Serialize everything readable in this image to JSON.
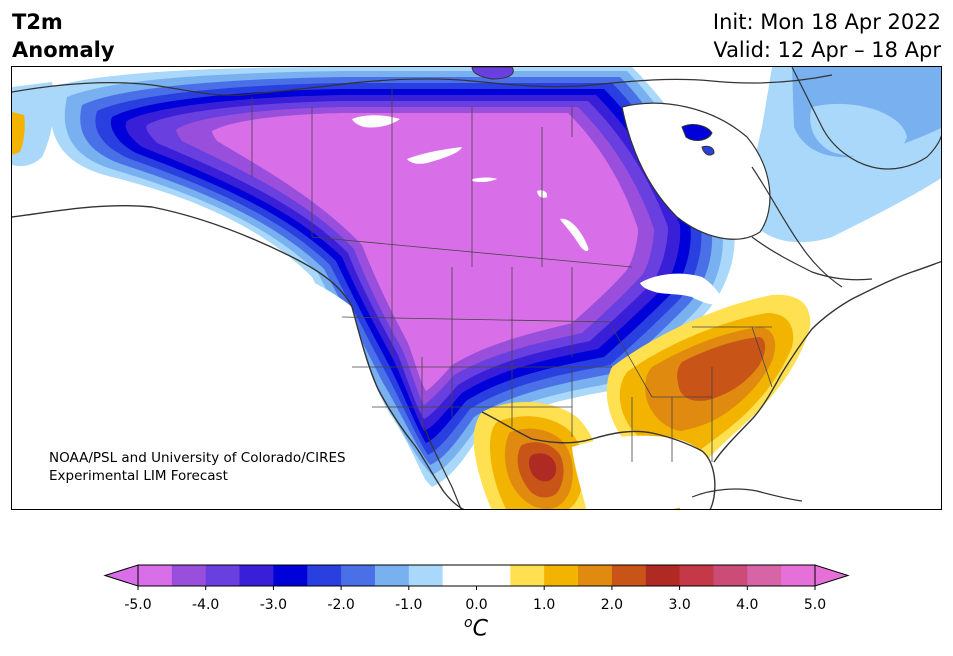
{
  "header": {
    "title_line1": "T2m",
    "title_line2": "Anomaly",
    "init_text": "Init: Mon 18 Apr 2022",
    "valid_text": "Valid: 12 Apr – 18 Apr"
  },
  "credit": {
    "line1": "NOAA/PSL and University of Colorado/CIRES",
    "line2": "Experimental LIM Forecast"
  },
  "colorbar": {
    "unit_base": "C",
    "unit_sup": "o",
    "tick_labels": [
      "-5.0",
      "-4.0",
      "-3.0",
      "-2.0",
      "-1.0",
      "0.0",
      "1.0",
      "2.0",
      "3.0",
      "4.0",
      "5.0"
    ],
    "colors": [
      "#d96fe8",
      "#9a4fdc",
      "#6a3fe0",
      "#3a1fd8",
      "#0000d8",
      "#2a3fe0",
      "#4a70e8",
      "#78b0f0",
      "#aad8fa",
      "#ffffff",
      "#ffffff",
      "#ffe050",
      "#f2b400",
      "#e08a10",
      "#c85418",
      "#b02a24",
      "#c43848",
      "#cc4c78",
      "#d864a8",
      "#e470d8"
    ],
    "extend_low_color": "#d96fe8",
    "extend_high_color": "#e470d8"
  },
  "map": {
    "colors": {
      "strong_cold": "#d96fe8",
      "cold_4": "#9a4fdc",
      "cold_3": "#6a3fe0",
      "cold_2": "#3a1fd8",
      "cold_1": "#0000d8",
      "cool_1": "#2a3fe0",
      "cool_2": "#4a70e8",
      "cool_3": "#78b0f0",
      "cool_4": "#aad8fa",
      "neutral": "#ffffff",
      "warm_1": "#ffe050",
      "warm_2": "#f2b400",
      "warm_3": "#e08a10",
      "warm_4": "#c85418",
      "hot_1": "#b02a24"
    }
  }
}
